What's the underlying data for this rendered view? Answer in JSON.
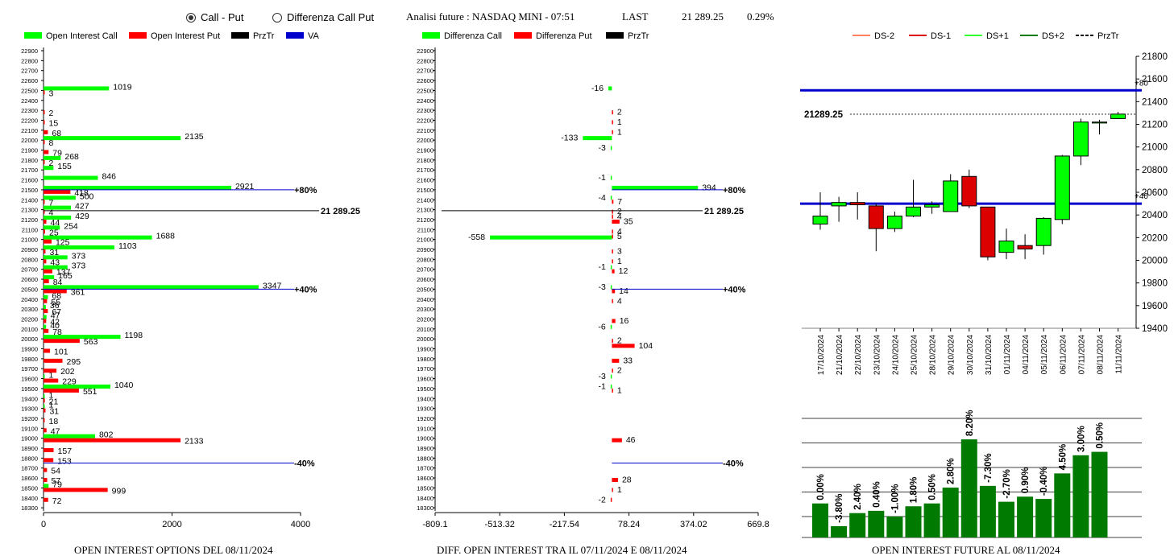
{
  "header": {
    "radio_options": [
      "Call - Put",
      "Differenza Call Put"
    ],
    "selected_radio": "Call - Put",
    "title": "Analisi future : NASDAQ MINI - 07:51",
    "last_label": "LAST",
    "last_value": "21 289.25",
    "change": "0.29%"
  },
  "colors": {
    "green": "#00ff00",
    "red": "#ff0000",
    "black": "#000000",
    "blue": "#0000cc",
    "dark_green": "#007a00"
  },
  "footers": {
    "left": "OPEN INTEREST OPTIONS DEL 08/11/2024",
    "middle": "DIFF. OPEN INTEREST TRA IL 07/11/2024 E 08/11/2024",
    "right": "OPEN INTEREST FUTURE AL 08/11/2024"
  },
  "chart_data": [
    {
      "type": "bar",
      "orientation": "horizontal",
      "legend": [
        "Open Interest Call",
        "Open Interest Put",
        "PrzTr",
        "VA"
      ],
      "strike_axis": [
        18300,
        22900,
        100
      ],
      "xlim": [
        0,
        4000
      ],
      "xticks": [
        "0",
        "2000",
        "4000"
      ],
      "call": [
        [
          22500,
          1019
        ],
        [
          22000,
          2135
        ],
        [
          21800,
          268
        ],
        [
          21700,
          155
        ],
        [
          21600,
          846
        ],
        [
          21500,
          2921
        ],
        [
          21400,
          500
        ],
        [
          21300,
          427
        ],
        [
          21200,
          429
        ],
        [
          21100,
          254
        ],
        [
          21000,
          1688
        ],
        [
          20900,
          1103
        ],
        [
          20800,
          373
        ],
        [
          20700,
          373
        ],
        [
          20600,
          165
        ],
        [
          20500,
          3347
        ],
        [
          20400,
          68
        ],
        [
          20300,
          36
        ],
        [
          20200,
          47
        ],
        [
          20100,
          40
        ],
        [
          20000,
          1198
        ],
        [
          19600,
          1
        ],
        [
          19500,
          1040
        ],
        [
          19400,
          1
        ],
        [
          19300,
          1
        ],
        [
          19000,
          802
        ],
        [
          18500,
          79
        ]
      ],
      "put": [
        [
          22500,
          3
        ],
        [
          22300,
          2
        ],
        [
          22200,
          15
        ],
        [
          22100,
          68
        ],
        [
          22000,
          8
        ],
        [
          21900,
          79
        ],
        [
          21800,
          2
        ],
        [
          21500,
          418
        ],
        [
          21400,
          7
        ],
        [
          21300,
          4
        ],
        [
          21200,
          44
        ],
        [
          21100,
          25
        ],
        [
          21000,
          125
        ],
        [
          20900,
          31
        ],
        [
          20800,
          43
        ],
        [
          20700,
          137
        ],
        [
          20600,
          84
        ],
        [
          20500,
          361
        ],
        [
          20400,
          55
        ],
        [
          20300,
          67
        ],
        [
          20200,
          42
        ],
        [
          20100,
          78
        ],
        [
          20000,
          563
        ],
        [
          19900,
          101
        ],
        [
          19800,
          295
        ],
        [
          19700,
          202
        ],
        [
          19600,
          229
        ],
        [
          19500,
          551
        ],
        [
          19400,
          21
        ],
        [
          19300,
          31
        ],
        [
          19200,
          18
        ],
        [
          19100,
          47
        ],
        [
          19000,
          2133
        ],
        [
          18900,
          157
        ],
        [
          18800,
          153
        ],
        [
          18700,
          54
        ],
        [
          18600,
          57
        ],
        [
          18500,
          999
        ],
        [
          18400,
          72
        ]
      ],
      "price_line": {
        "strike": 21289.25,
        "label": "21 289.25"
      },
      "va_lines": [
        {
          "strike": 21500,
          "label": "+80%"
        },
        {
          "strike": 20500,
          "label": "+40%"
        },
        {
          "strike": 18750,
          "label": "-40%"
        }
      ]
    },
    {
      "type": "bar",
      "orientation": "horizontal",
      "legend": [
        "Differenza Call",
        "Differenza Put",
        "PrzTr"
      ],
      "strike_axis": [
        18300,
        22900,
        100
      ],
      "xlim": [
        -809.1,
        669.8
      ],
      "xticks": [
        "-809.1",
        "-513.32",
        "-217.54",
        "78.24",
        "374.02",
        "669.8"
      ],
      "call_diff": [
        [
          22500,
          -16
        ],
        [
          22000,
          -133
        ],
        [
          21900,
          -3
        ],
        [
          21600,
          -1
        ],
        [
          21500,
          394
        ],
        [
          21400,
          -4
        ],
        [
          21000,
          -558
        ],
        [
          20700,
          -1
        ],
        [
          20500,
          -3
        ],
        [
          20100,
          -6
        ],
        [
          19600,
          -3
        ],
        [
          19500,
          -1
        ]
      ],
      "put_diff": [
        [
          22300,
          2
        ],
        [
          22200,
          1
        ],
        [
          22100,
          1
        ],
        [
          21400,
          7
        ],
        [
          21300,
          2
        ],
        [
          21250,
          4
        ],
        [
          21200,
          35
        ],
        [
          21100,
          4
        ],
        [
          21050,
          5
        ],
        [
          20900,
          3
        ],
        [
          20800,
          1
        ],
        [
          20700,
          12
        ],
        [
          20500,
          14
        ],
        [
          20400,
          4
        ],
        [
          20200,
          16
        ],
        [
          20000,
          2
        ],
        [
          19950,
          104
        ],
        [
          19800,
          33
        ],
        [
          19700,
          2
        ],
        [
          19500,
          1
        ],
        [
          19000,
          46
        ],
        [
          18600,
          28
        ],
        [
          18500,
          1
        ],
        [
          18400,
          -2
        ]
      ],
      "price_line": {
        "strike": 21289.25,
        "label": "21 289.25"
      },
      "va_lines": [
        {
          "strike": 21500,
          "label": "+80%"
        },
        {
          "strike": 20500,
          "label": "+40%"
        },
        {
          "strike": 18750,
          "label": "-40%"
        }
      ]
    },
    {
      "type": "candlestick",
      "legend": [
        "DS-2",
        "DS-1",
        "DS+1",
        "DS+2",
        "PrzTr"
      ],
      "ylim": [
        19400,
        21800
      ],
      "yticks": [
        "19400",
        "19600",
        "19800",
        "20000",
        "20200",
        "20400",
        "20600",
        "20800",
        "21000",
        "21200",
        "21400",
        "21600",
        "21800"
      ],
      "dates": [
        "17/10/2024",
        "21/10/2024",
        "22/10/2024",
        "23/10/2024",
        "24/10/2024",
        "25/10/2024",
        "28/10/2024",
        "29/10/2024",
        "30/10/2024",
        "31/10/2024",
        "01/11/2024",
        "04/11/2024",
        "05/11/2024",
        "06/11/2024",
        "07/11/2024",
        "08/11/2024",
        "11/11/2024"
      ],
      "ohlc": [
        [
          20320,
          20600,
          20270,
          20390
        ],
        [
          20480,
          20560,
          20340,
          20510
        ],
        [
          20510,
          20600,
          20360,
          20490
        ],
        [
          20480,
          20500,
          20080,
          20280
        ],
        [
          20280,
          20430,
          20250,
          20390
        ],
        [
          20390,
          20710,
          20380,
          20470
        ],
        [
          20470,
          20520,
          20410,
          20490
        ],
        [
          20430,
          20760,
          20430,
          20700
        ],
        [
          20740,
          20800,
          20460,
          20480
        ],
        [
          20470,
          20470,
          20000,
          20030
        ],
        [
          20070,
          20280,
          20010,
          20170
        ],
        [
          20130,
          20230,
          20010,
          20100
        ],
        [
          20130,
          20380,
          20050,
          20370
        ],
        [
          20360,
          20930,
          20320,
          20920
        ],
        [
          20920,
          21250,
          20840,
          21220
        ],
        [
          21220,
          21240,
          21110,
          21220
        ],
        [
          21250,
          21310,
          21250,
          21290
        ]
      ],
      "price_line": {
        "value": 21289.25,
        "label": "21289.25"
      },
      "hlines": [
        {
          "value": 21500,
          "label": "+80"
        },
        {
          "value": 20500,
          "label": "+40"
        }
      ]
    },
    {
      "type": "bar",
      "categories": [
        "17/10/2024",
        "21/10/2024",
        "22/10/2024",
        "23/10/2024",
        "24/10/2024",
        "25/10/2024",
        "28/10/2024",
        "29/10/2024",
        "30/10/2024",
        "31/10/2024",
        "01/11/2024",
        "04/11/2024",
        "05/11/2024",
        "06/11/2024",
        "07/11/2024",
        "08/11/2024"
      ],
      "labels": [
        "0.00%",
        "-3.80%",
        "2.40%",
        "0.40%",
        "-1.00%",
        "1.80%",
        "0.50%",
        "2.80%",
        "8.20%",
        "-7.30%",
        "-2.70%",
        "0.90%",
        "-0.40%",
        "4.50%",
        "3.00%",
        "0.50%"
      ],
      "values": [
        1.0,
        0.96,
        0.983,
        0.987,
        0.977,
        0.995,
        1.0,
        1.028,
        1.113,
        1.031,
        1.003,
        1.012,
        1.008,
        1.053,
        1.085,
        1.091
      ],
      "ylim": [
        0.94,
        1.15
      ]
    }
  ]
}
